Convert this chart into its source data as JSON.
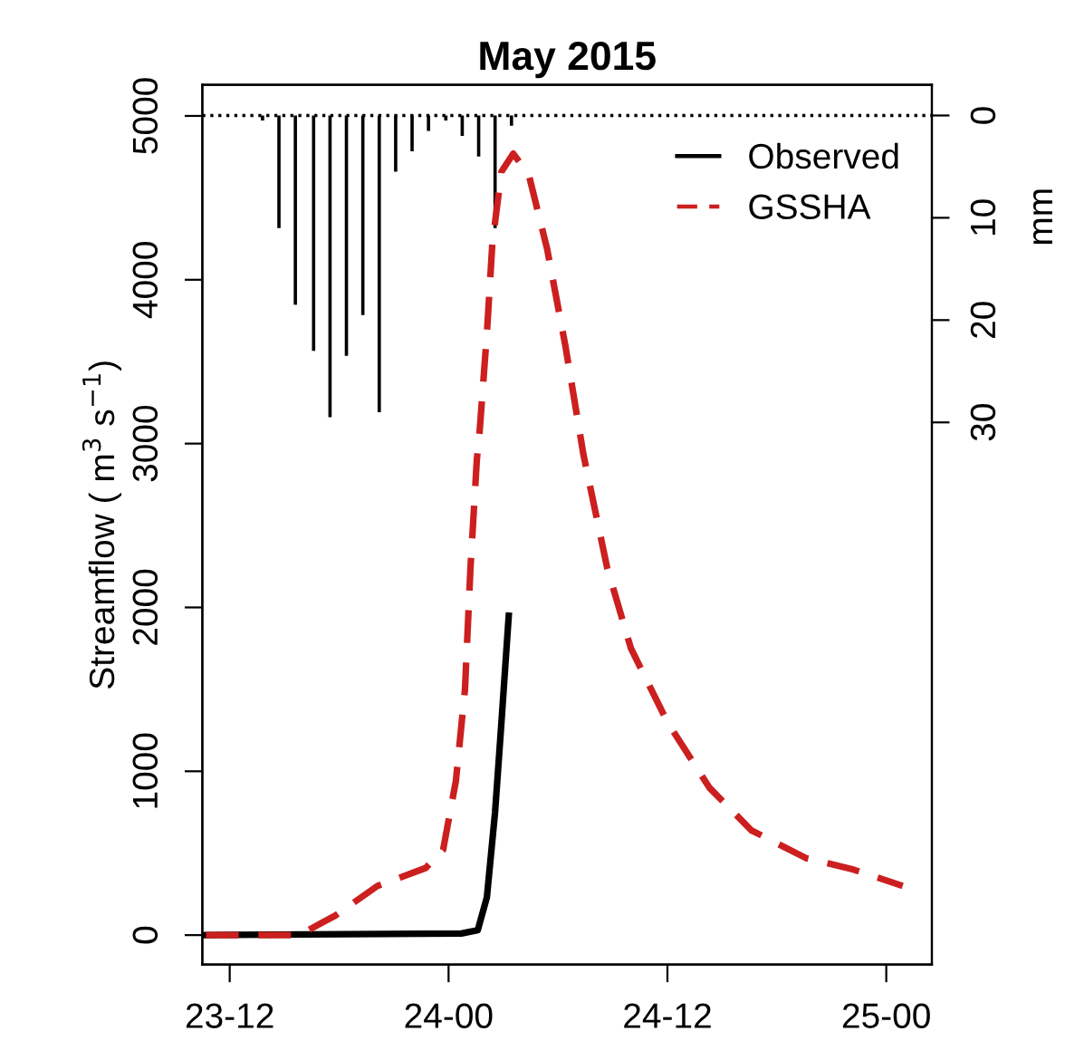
{
  "chart_data": {
    "type": "line",
    "title": "May 2015",
    "ylabel": "Streamflow ( m$^{3}$ s$^{−1}$)",
    "y2label": "mm",
    "xlim": [
      "2015-05-23T10:30",
      "2015-05-25T02:30"
    ],
    "xticks": [
      {
        "value": "2015-05-23T12:00",
        "label": "23-12"
      },
      {
        "value": "2015-05-24T00:00",
        "label": "24-00"
      },
      {
        "value": "2015-05-24T12:00",
        "label": "24-12"
      },
      {
        "value": "2015-05-25T00:00",
        "label": "25-00"
      }
    ],
    "ylim": [
      -180,
      5190
    ],
    "yticks": [
      0,
      1000,
      2000,
      3000,
      4000,
      5000
    ],
    "y2lim": [
      83,
      -3
    ],
    "y2ticks": [
      0,
      10,
      20,
      30
    ],
    "grid": false,
    "legend": "top right",
    "ref_lines": [
      {
        "axis": "y2",
        "value": 0,
        "line_style": "dotted",
        "color": "#000000"
      }
    ],
    "series": [
      {
        "name": "Observed",
        "color": "#000000",
        "line_style": "solid",
        "x": [
          "2015-05-23T10:42",
          "2015-05-24T00:42",
          "2015-05-24T01:36",
          "2015-05-24T02:06",
          "2015-05-24T02:33",
          "2015-05-24T02:54",
          "2015-05-24T03:18"
        ],
        "values": [
          0,
          10,
          30,
          230,
          750,
          1300,
          1950
        ]
      },
      {
        "name": "GSSHA",
        "color": "#cc1f1f",
        "line_style": "dashed",
        "x": [
          "2015-05-23T10:42",
          "2015-05-23T15:48",
          "2015-05-23T17:48",
          "2015-05-23T20:06",
          "2015-05-23T22:45",
          "2015-05-23T23:42",
          "2015-05-24T00:24",
          "2015-05-24T00:54",
          "2015-05-24T01:12",
          "2015-05-24T01:33",
          "2015-05-24T01:42",
          "2015-05-24T02:06",
          "2015-05-24T02:24",
          "2015-05-24T02:54",
          "2015-05-24T03:33",
          "2015-05-24T04:24",
          "2015-05-24T05:24",
          "2015-05-24T06:24",
          "2015-05-24T07:24",
          "2015-05-24T08:42",
          "2015-05-24T10:00",
          "2015-05-24T12:00",
          "2015-05-24T14:18",
          "2015-05-24T16:36",
          "2015-05-24T19:36",
          "2015-05-24T22:12",
          "2015-05-25T00:54"
        ],
        "values": [
          0,
          0,
          120,
          300,
          410,
          520,
          940,
          1500,
          2240,
          2900,
          3070,
          3670,
          4220,
          4660,
          4770,
          4640,
          4190,
          3600,
          2930,
          2240,
          1750,
          1300,
          900,
          640,
          470,
          400,
          300
        ]
      },
      {
        "type": "bar",
        "axis": "y2",
        "color": "#000000",
        "x": [
          "2015-05-23T13:48",
          "2015-05-23T14:42",
          "2015-05-23T15:36",
          "2015-05-23T16:36",
          "2015-05-23T17:30",
          "2015-05-23T18:24",
          "2015-05-23T19:18",
          "2015-05-23T20:12",
          "2015-05-23T21:06",
          "2015-05-23T22:00",
          "2015-05-23T22:54",
          "2015-05-23T23:51",
          "2015-05-24T00:45",
          "2015-05-24T01:39",
          "2015-05-24T02:33",
          "2015-05-24T03:27"
        ],
        "values": [
          0.5,
          11,
          18.5,
          23,
          29.5,
          23.5,
          19.5,
          29,
          5.5,
          3.5,
          1.5,
          0.5,
          2,
          4,
          11,
          1
        ]
      }
    ]
  }
}
